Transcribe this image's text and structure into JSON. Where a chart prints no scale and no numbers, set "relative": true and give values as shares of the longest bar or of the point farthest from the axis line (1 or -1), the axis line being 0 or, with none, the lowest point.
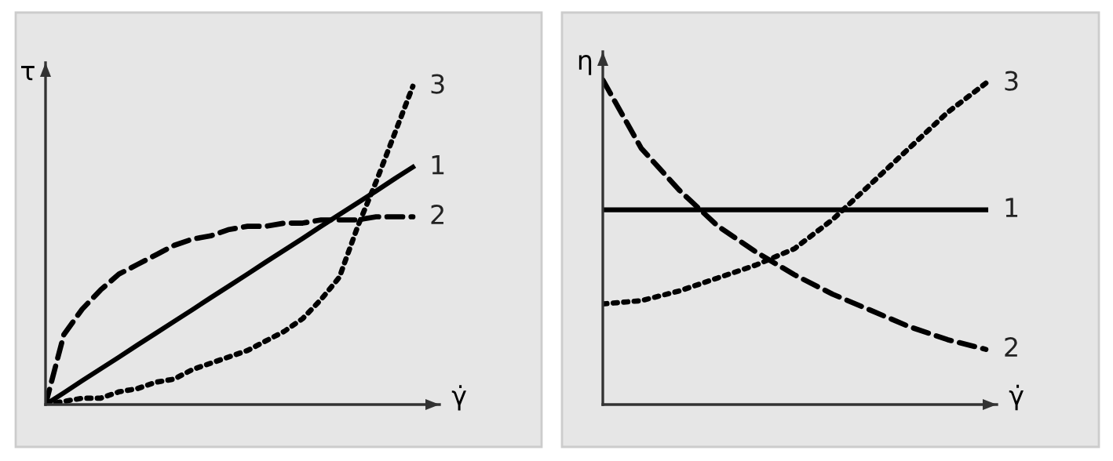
{
  "chart_data": [
    {
      "type": "line",
      "relative": true,
      "xlabel": "γ̇",
      "ylabel": "τ",
      "categories": [
        null,
        null,
        null,
        null,
        null,
        null,
        null,
        null,
        null,
        null,
        null,
        null,
        null,
        null,
        null,
        null,
        null,
        null,
        null,
        null,
        null
      ],
      "series": [
        {
          "name": "1",
          "color": "#000000",
          "line_style": "solid",
          "values": [
            0,
            0.037,
            0.075,
            0.112,
            0.149,
            0.187,
            0.224,
            0.261,
            0.298,
            0.336,
            0.373,
            0.41,
            0.448,
            0.485,
            0.522,
            0.56,
            0.597,
            0.634,
            0.671,
            0.709,
            0.746
          ]
        },
        {
          "name": "2",
          "color": "#000000",
          "line_style": "dashed",
          "values": [
            0,
            0.22,
            0.3,
            0.36,
            0.41,
            0.44,
            0.47,
            0.5,
            0.52,
            0.53,
            0.55,
            0.56,
            0.56,
            0.57,
            0.57,
            0.58,
            0.58,
            0.58,
            0.59,
            0.59,
            0.59
          ]
        },
        {
          "name": "3",
          "color": "#000000",
          "line_style": "dotted",
          "values": [
            0,
            0.01,
            0.02,
            0.02,
            0.04,
            0.05,
            0.07,
            0.08,
            0.11,
            0.13,
            0.15,
            0.17,
            0.2,
            0.23,
            0.27,
            0.33,
            0.4,
            0.56,
            0.7,
            0.85,
            1.0
          ]
        }
      ]
    },
    {
      "type": "line",
      "relative": true,
      "xlabel": "γ̇",
      "ylabel": "η",
      "categories": [
        null,
        null,
        null,
        null,
        null,
        null,
        null,
        null,
        null,
        null,
        null
      ],
      "series": [
        {
          "name": "1",
          "color": "#000000",
          "line_style": "solid",
          "values": [
            0.6,
            0.6,
            0.6,
            0.6,
            0.6,
            0.6,
            0.6,
            0.6,
            0.6,
            0.6,
            0.6
          ]
        },
        {
          "name": "2",
          "color": "#000000",
          "line_style": "dashed",
          "values": [
            1.0,
            0.79,
            0.66,
            0.55,
            0.47,
            0.4,
            0.34,
            0.29,
            0.24,
            0.2,
            0.17
          ]
        },
        {
          "name": "3",
          "color": "#000000",
          "line_style": "dotted",
          "values": [
            0.31,
            0.32,
            0.35,
            0.39,
            0.43,
            0.48,
            0.57,
            0.68,
            0.79,
            0.9,
            0.99
          ]
        }
      ]
    }
  ]
}
